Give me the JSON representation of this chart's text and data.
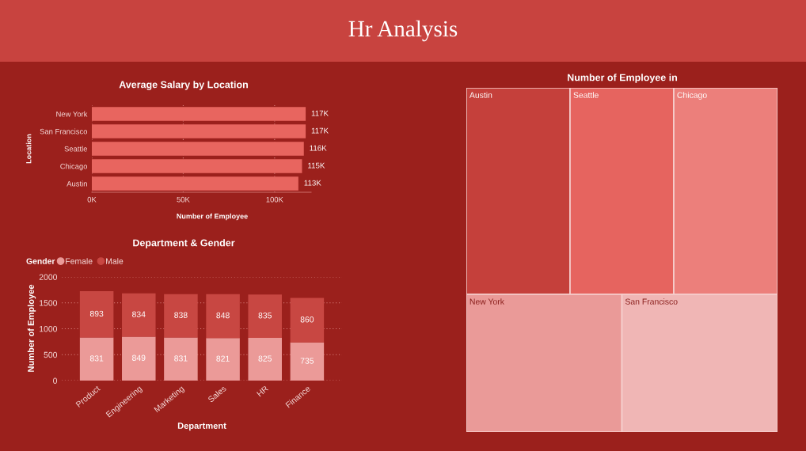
{
  "chart_data": [
    {
      "type": "other",
      "title": "Hr Analysis"
    },
    {
      "type": "bar",
      "title": "Average Salary by Location",
      "xlabel": "Number of Employee",
      "ylabel": "Location",
      "orientation": "horizontal",
      "categories": [
        "New York",
        "San Francisco",
        "Seattle",
        "Chicago",
        "Austin"
      ],
      "values": [
        117000,
        117000,
        116000,
        115000,
        113000
      ],
      "value_labels": [
        "117K",
        "117K",
        "116K",
        "115K",
        "113K"
      ],
      "color": "#e8655f",
      "xlim": [
        0,
        120000
      ],
      "xticks": [
        {
          "value": 0,
          "label": "0K"
        },
        {
          "value": 50000,
          "label": "50K"
        },
        {
          "value": 100000,
          "label": "100K"
        }
      ],
      "grid": "x"
    },
    {
      "type": "bar",
      "title": "Department & Gender",
      "xlabel": "Department",
      "ylabel": "Number of Employee",
      "legend_title": "Gender",
      "categories": [
        "Product",
        "Engineering",
        "Marketing",
        "Sales",
        "HR",
        "Finance"
      ],
      "series": [
        {
          "name": "Female",
          "color": "#eb9a98",
          "values": [
            831,
            849,
            831,
            821,
            825,
            735
          ]
        },
        {
          "name": "Male",
          "color": "#c84742",
          "values": [
            893,
            834,
            838,
            848,
            835,
            860
          ]
        }
      ],
      "stacked": true,
      "ylim": [
        0,
        2000
      ],
      "yticks": [
        0,
        500,
        1000,
        1500,
        2000
      ],
      "grid": "y",
      "legend": "top left",
      "data_labels": true
    },
    {
      "type": "other",
      "title": "Number of Employee in",
      "categories": [
        "Austin",
        "Seattle",
        "Chicago",
        "New York",
        "San Francisco"
      ],
      "colors": [
        "#c5403b",
        "#e6645f",
        "#ec7f7b",
        "#ea9a98",
        "#f0b6b5"
      ]
    }
  ]
}
